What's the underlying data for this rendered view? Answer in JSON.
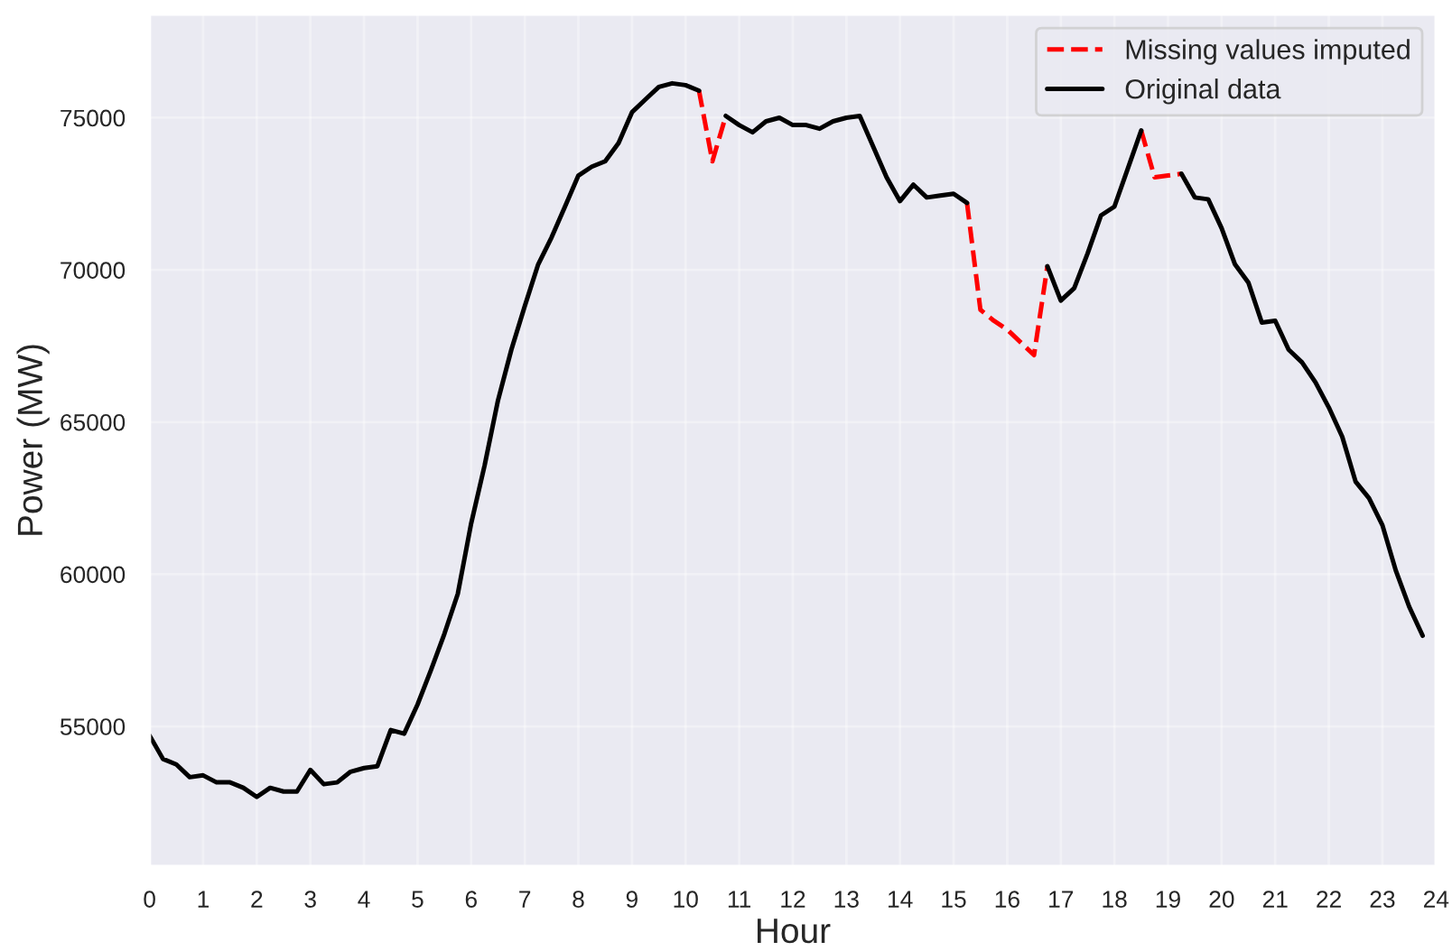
{
  "chart_data": {
    "type": "line",
    "xlabel": "Hour",
    "ylabel": "Power (MW)",
    "x": [
      0,
      0.25,
      0.5,
      0.75,
      1,
      1.25,
      1.5,
      1.75,
      2,
      2.25,
      2.5,
      2.75,
      3,
      3.25,
      3.5,
      3.75,
      4,
      4.25,
      4.5,
      4.75,
      5,
      5.25,
      5.5,
      5.75,
      6,
      6.25,
      6.5,
      6.75,
      7,
      7.25,
      7.5,
      7.75,
      8,
      8.25,
      8.5,
      8.75,
      9,
      9.25,
      9.5,
      9.75,
      10,
      10.25,
      10.5,
      10.75,
      11,
      11.25,
      11.5,
      11.75,
      12,
      12.25,
      12.5,
      12.75,
      13,
      13.25,
      13.5,
      13.75,
      14,
      14.25,
      14.5,
      14.75,
      15,
      15.25,
      15.5,
      15.75,
      16,
      16.25,
      16.5,
      16.75,
      17,
      17.25,
      17.5,
      17.75,
      18,
      18.25,
      18.5,
      18.75,
      19,
      19.25,
      19.5,
      19.75,
      20,
      20.25,
      20.5,
      20.75,
      21,
      21.25,
      21.5,
      21.75,
      22,
      22.25,
      22.5,
      22.75,
      23,
      23.25,
      23.5,
      23.75
    ],
    "series": [
      {
        "name": "Missing values imputed",
        "color": "#ff0000",
        "line_style": "dashed",
        "values": [
          null,
          null,
          null,
          null,
          null,
          null,
          null,
          null,
          null,
          null,
          null,
          null,
          null,
          null,
          null,
          null,
          null,
          null,
          null,
          null,
          null,
          null,
          null,
          null,
          null,
          null,
          null,
          null,
          null,
          null,
          null,
          null,
          null,
          null,
          null,
          null,
          null,
          null,
          null,
          null,
          null,
          75890,
          73570,
          75060,
          null,
          null,
          null,
          null,
          null,
          null,
          null,
          null,
          null,
          null,
          null,
          null,
          null,
          null,
          null,
          null,
          null,
          72200,
          68690,
          68330,
          68040,
          67620,
          67200,
          70120,
          null,
          null,
          null,
          null,
          null,
          null,
          74580,
          73040,
          73100,
          73160,
          null,
          null,
          null,
          null,
          null,
          null,
          null,
          null,
          null,
          null,
          null,
          null,
          null,
          null,
          null,
          null,
          null,
          null
        ]
      },
      {
        "name": "Original data",
        "color": "#000000",
        "line_style": "solid",
        "values": [
          54700,
          53930,
          53750,
          53330,
          53390,
          53160,
          53160,
          52980,
          52680,
          52980,
          52860,
          52860,
          53570,
          53100,
          53160,
          53510,
          53630,
          53690,
          54880,
          54760,
          55720,
          56850,
          58040,
          59350,
          61670,
          63570,
          65710,
          67380,
          68810,
          70180,
          71070,
          72080,
          73100,
          73390,
          73570,
          74170,
          75180,
          75600,
          76010,
          76130,
          76070,
          75890,
          null,
          75060,
          74760,
          74520,
          74880,
          75000,
          74760,
          74760,
          74640,
          74880,
          75000,
          75060,
          74050,
          73040,
          72260,
          72800,
          72380,
          72440,
          72500,
          72200,
          null,
          null,
          null,
          null,
          null,
          70120,
          68990,
          69400,
          70540,
          71790,
          72080,
          73330,
          74580,
          null,
          null,
          73160,
          72380,
          72320,
          71370,
          70180,
          69580,
          68270,
          68330,
          67380,
          66960,
          66310,
          65480,
          64520,
          63040,
          62500,
          61610,
          60120,
          58930,
          57980
        ]
      }
    ],
    "xlim": [
      0,
      24
    ],
    "xticks": [
      0,
      1,
      2,
      3,
      4,
      5,
      6,
      7,
      8,
      9,
      10,
      11,
      12,
      13,
      14,
      15,
      16,
      17,
      18,
      19,
      20,
      21,
      22,
      23,
      24
    ],
    "ylim": [
      50400,
      78400
    ],
    "yticks": [
      55000,
      60000,
      65000,
      70000,
      75000
    ],
    "grid": true,
    "legend": "top right",
    "marker": "none"
  }
}
